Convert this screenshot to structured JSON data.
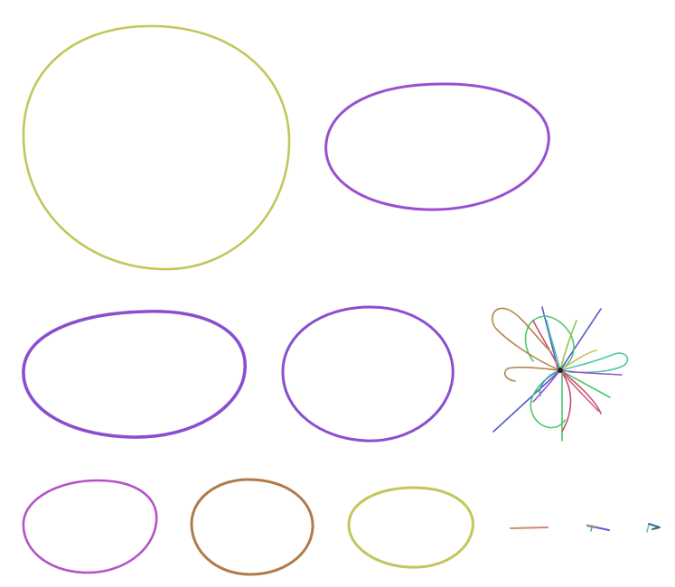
{
  "graph": {
    "components": [
      {
        "id": "component-1",
        "kind": "circular-contig",
        "color": "#c3c65a"
      },
      {
        "id": "component-2",
        "kind": "circular-contig",
        "color": "#9b4fd0"
      },
      {
        "id": "component-3",
        "kind": "circular-contig",
        "color": "#8a4fcf"
      },
      {
        "id": "component-4",
        "kind": "circular-contig",
        "color": "#8a4fcf"
      },
      {
        "id": "component-5",
        "kind": "tangled-cluster",
        "color": "#7a8a55"
      },
      {
        "id": "component-6",
        "kind": "circular-contig",
        "color": "#b353c9"
      },
      {
        "id": "component-7",
        "kind": "circular-contig",
        "color": "#b07a4a"
      },
      {
        "id": "component-8",
        "kind": "circular-contig",
        "color": "#c3c65a"
      },
      {
        "id": "component-9",
        "kind": "short-segment",
        "color": "#d08a6a"
      },
      {
        "id": "component-10",
        "kind": "short-segment",
        "color": "#5a5ad0"
      },
      {
        "id": "component-11",
        "kind": "short-segment",
        "color": "#3a6a8a"
      }
    ],
    "tangle_colors": [
      "#5a5ad0",
      "#4ec66a",
      "#c94d6e",
      "#b0884a",
      "#4ec6a8",
      "#9b4fd0",
      "#8ac64e",
      "#c3c65a",
      "#3aa0c0",
      "#d0607a"
    ]
  }
}
